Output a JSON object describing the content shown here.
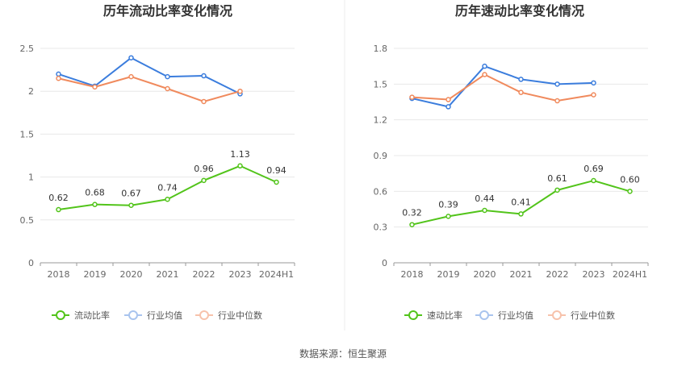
{
  "chart_data": [
    {
      "type": "line",
      "title": "历年流动比率变化情况",
      "categories": [
        "2018",
        "2019",
        "2020",
        "2021",
        "2022",
        "2023",
        "2024H1"
      ],
      "yticks": [
        "0",
        "0.5",
        "1",
        "1.5",
        "2",
        "2.5"
      ],
      "ylim": [
        0,
        2.5
      ],
      "series": [
        {
          "name": "流动比率",
          "color": "#52c41a",
          "values": [
            0.62,
            0.68,
            0.67,
            0.74,
            0.96,
            1.13,
            0.94
          ],
          "labels": [
            "0.62",
            "0.68",
            "0.67",
            "0.74",
            "0.96",
            "1.13",
            "0.94"
          ]
        },
        {
          "name": "行业均值",
          "color": "#3b7ddd",
          "values": [
            2.2,
            2.06,
            2.39,
            2.17,
            2.18,
            1.97,
            null
          ]
        },
        {
          "name": "行业中位数",
          "color": "#f08a5d",
          "values": [
            2.15,
            2.05,
            2.17,
            2.03,
            1.88,
            2.0,
            null
          ]
        }
      ]
    },
    {
      "type": "line",
      "title": "历年速动比率变化情况",
      "categories": [
        "2018",
        "2019",
        "2020",
        "2021",
        "2022",
        "2023",
        "2024H1"
      ],
      "yticks": [
        "0",
        "0.3",
        "0.6",
        "0.9",
        "1.2",
        "1.5",
        "1.8"
      ],
      "ylim": [
        0,
        1.8
      ],
      "series": [
        {
          "name": "速动比率",
          "color": "#52c41a",
          "values": [
            0.32,
            0.39,
            0.44,
            0.41,
            0.61,
            0.69,
            0.6
          ],
          "labels": [
            "0.32",
            "0.39",
            "0.44",
            "0.41",
            "0.61",
            "0.69",
            "0.60"
          ]
        },
        {
          "name": "行业均值",
          "color": "#3b7ddd",
          "values": [
            1.38,
            1.31,
            1.65,
            1.54,
            1.5,
            1.51,
            null
          ]
        },
        {
          "name": "行业中位数",
          "color": "#f08a5d",
          "values": [
            1.39,
            1.37,
            1.58,
            1.43,
            1.36,
            1.41,
            null
          ]
        }
      ]
    }
  ],
  "source": "数据来源：恒生聚源"
}
